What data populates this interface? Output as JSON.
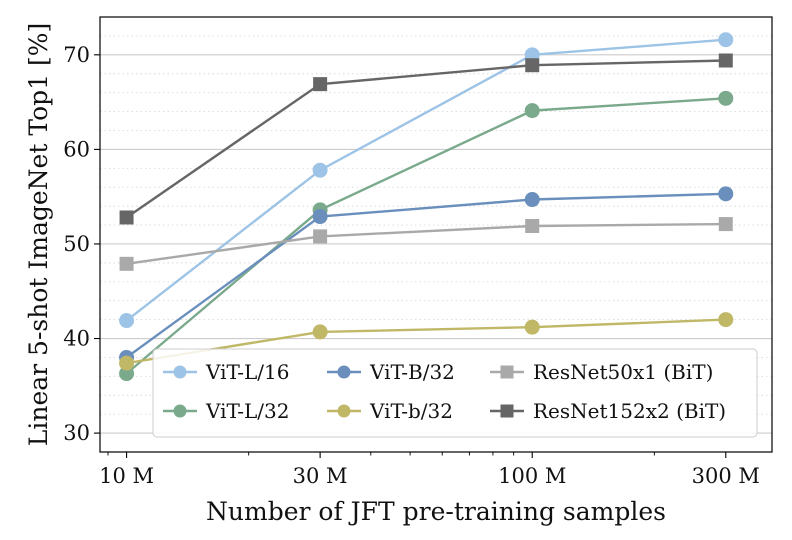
{
  "chart_data": {
    "type": "line",
    "title": "",
    "xlabel": "Number of JFT pre-training samples",
    "ylabel": "Linear 5-shot ImageNet Top1 [%]",
    "x_scale": "log",
    "x": [
      10,
      30,
      100,
      300
    ],
    "x_tick_labels": [
      "10 M",
      "30 M",
      "100 M",
      "300 M"
    ],
    "xlim": [
      8.6,
      390
    ],
    "ylim": [
      28,
      74
    ],
    "y_ticks": [
      30,
      40,
      50,
      60,
      70
    ],
    "grid": true,
    "legend_position": "bottom-right",
    "series": [
      {
        "name": "ViT-L/16",
        "values": [
          41.9,
          57.8,
          70.0,
          71.6
        ],
        "color": "#9dc3e6",
        "marker": "circle"
      },
      {
        "name": "ViT-L/32",
        "values": [
          36.3,
          53.6,
          64.1,
          65.4
        ],
        "color": "#7aa98c",
        "marker": "circle"
      },
      {
        "name": "ViT-B/32",
        "values": [
          38.0,
          52.9,
          54.7,
          55.3
        ],
        "color": "#6a8fbc",
        "marker": "circle"
      },
      {
        "name": "ViT-b/32",
        "values": [
          37.4,
          40.7,
          41.2,
          42.0
        ],
        "color": "#c0b767",
        "marker": "circle"
      },
      {
        "name": "ResNet50x1 (BiT)",
        "values": [
          47.9,
          50.8,
          51.9,
          52.1
        ],
        "color": "#a9a9a9",
        "marker": "square"
      },
      {
        "name": "ResNet152x2 (BiT)",
        "values": [
          52.8,
          66.9,
          68.9,
          69.4
        ],
        "color": "#666666",
        "marker": "square"
      }
    ]
  }
}
